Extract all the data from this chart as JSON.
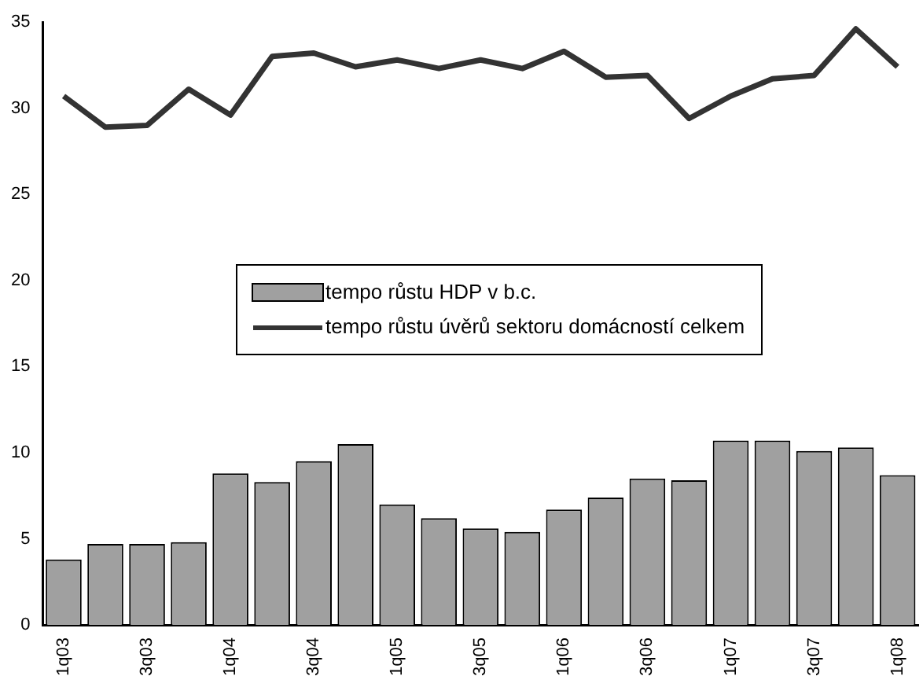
{
  "chart_data": {
    "type": "bar",
    "categories": [
      "1q03",
      null,
      "3q03",
      null,
      "1q04",
      null,
      "3q04",
      null,
      "1q05",
      null,
      "3q05",
      null,
      "1q06",
      null,
      "3q06",
      null,
      "1q07",
      null,
      "3q07",
      null,
      "1q08"
    ],
    "series": [
      {
        "name": "tempo růstu HDP v b.c.",
        "color": "#a0a0a0",
        "values": [
          3.8,
          4.7,
          4.7,
          4.8,
          8.8,
          8.3,
          9.5,
          10.5,
          7.0,
          6.2,
          5.6,
          5.4,
          6.7,
          7.4,
          8.5,
          8.4,
          10.7,
          10.7,
          10.1,
          10.3,
          8.7
        ]
      },
      {
        "name": "tempo růstu úvěrů sektoru domácností celkem",
        "type": "line",
        "color": "#333333",
        "values": [
          30.7,
          28.9,
          29.0,
          31.1,
          29.6,
          33.0,
          33.2,
          32.4,
          32.8,
          32.3,
          32.8,
          32.3,
          33.3,
          31.8,
          31.9,
          29.4,
          30.7,
          31.7,
          31.9,
          34.6,
          32.4
        ]
      }
    ],
    "ylim": [
      0,
      35
    ],
    "yticks": [
      0,
      5,
      10,
      15,
      20,
      25,
      30,
      35
    ],
    "grid": false,
    "legend": "center",
    "marker": "none"
  }
}
